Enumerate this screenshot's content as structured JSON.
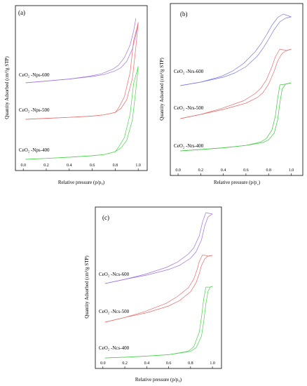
{
  "chart_data": [
    {
      "type": "line",
      "panel_label": "(a)",
      "xlabel": "Relative pressure (p/p₀)",
      "ylabel": "Quantity Adsorbed (cm³/g STP)",
      "xlim": [
        -0.05,
        1.06
      ],
      "xticks": [
        "0.0",
        "0.2",
        "0.4",
        "0.6",
        "0.8",
        "1.0"
      ],
      "hysteresis_start": 0.8,
      "y_scale": "relative (offset curves, no y tick labels)",
      "series": [
        {
          "name": "CeO₂ -Nps-600",
          "color": "#9f73e6",
          "x": [
            0.02,
            0.2,
            0.4,
            0.6,
            0.7,
            0.8,
            0.85,
            0.9,
            0.95,
            0.98,
            1.0
          ],
          "y": [
            0.0,
            0.028,
            0.06,
            0.1,
            0.13,
            0.19,
            0.24,
            0.34,
            0.54,
            0.76,
            0.96
          ]
        },
        {
          "name": "CeO₂ -Nps-500",
          "color": "#ea6b6b",
          "x": [
            0.02,
            0.2,
            0.4,
            0.6,
            0.7,
            0.8,
            0.85,
            0.9,
            0.95,
            0.98,
            1.0
          ],
          "y": [
            0.0,
            0.01,
            0.02,
            0.033,
            0.045,
            0.07,
            0.11,
            0.2,
            0.42,
            0.74,
            0.98
          ]
        },
        {
          "name": "CeO₂ -Nps-400",
          "color": "#4cd44c",
          "x": [
            0.02,
            0.2,
            0.4,
            0.6,
            0.7,
            0.8,
            0.85,
            0.9,
            0.95,
            0.98,
            1.0
          ],
          "y": [
            0.0,
            0.01,
            0.022,
            0.038,
            0.05,
            0.08,
            0.12,
            0.2,
            0.42,
            0.74,
            0.98
          ]
        }
      ]
    },
    {
      "type": "line",
      "panel_label": "(b)",
      "xlabel": "Relative pressure (p/p˳)",
      "ylabel": "Quantity Adsorbed (cm³/g STP)",
      "xlim": [
        -0.05,
        1.09
      ],
      "xticks": [
        "0.0",
        "0.2",
        "0.4",
        "0.6",
        "0.8",
        "1.0"
      ],
      "y_scale": "relative (offset curves, no y tick labels)",
      "series": [
        {
          "name": "CeO₂ -Nrs-600",
          "color": "#7b7be8",
          "x": [
            0.02,
            0.2,
            0.4,
            0.5,
            0.6,
            0.7,
            0.75,
            0.8,
            0.85,
            0.9,
            0.95,
            1.0
          ],
          "y": [
            0.0,
            0.05,
            0.12,
            0.18,
            0.27,
            0.42,
            0.53,
            0.66,
            0.8,
            0.91,
            0.96,
            0.98
          ]
        },
        {
          "name": "CeO₂ -Nrs-500",
          "color": "#ea6b6b",
          "x": [
            0.02,
            0.2,
            0.4,
            0.6,
            0.7,
            0.75,
            0.8,
            0.85,
            0.88,
            0.92,
            0.96,
            1.0
          ],
          "y": [
            0.0,
            0.06,
            0.13,
            0.22,
            0.3,
            0.37,
            0.49,
            0.68,
            0.82,
            0.93,
            0.97,
            0.99
          ]
        },
        {
          "name": "CeO₂ -Nrs-400",
          "color": "#3cc83c",
          "x": [
            0.02,
            0.2,
            0.4,
            0.6,
            0.75,
            0.8,
            0.85,
            0.88,
            0.9,
            0.92,
            0.95,
            1.0
          ],
          "y": [
            0.0,
            0.02,
            0.045,
            0.08,
            0.12,
            0.16,
            0.26,
            0.45,
            0.7,
            0.9,
            0.97,
            0.99
          ]
        }
      ]
    },
    {
      "type": "line",
      "panel_label": "(c)",
      "xlabel": "Relative pressure (p/p₀)",
      "ylabel": "Quantity Adsorbed (cm³/g STP)",
      "xlim": [
        -0.05,
        1.07
      ],
      "xticks": [
        "0.0",
        "0.2",
        "0.4",
        "0.6",
        "0.8",
        "1.0"
      ],
      "y_scale": "relative (offset curves, no y tick labels)",
      "series": [
        {
          "name": "CeO₂ -Ncs-600",
          "color": "#9f73e6",
          "x": [
            0.02,
            0.2,
            0.4,
            0.6,
            0.7,
            0.8,
            0.85,
            0.9,
            0.93,
            0.96,
            1.0
          ],
          "y": [
            0.0,
            0.06,
            0.12,
            0.2,
            0.26,
            0.36,
            0.45,
            0.62,
            0.82,
            0.95,
            0.99
          ]
        },
        {
          "name": "CeO₂ -Ncs-500",
          "color": "#ea6b6b",
          "x": [
            0.02,
            0.2,
            0.4,
            0.6,
            0.7,
            0.8,
            0.85,
            0.88,
            0.9,
            0.93,
            0.96,
            1.0
          ],
          "y": [
            0.0,
            0.07,
            0.14,
            0.24,
            0.32,
            0.45,
            0.58,
            0.72,
            0.84,
            0.94,
            0.98,
            0.99
          ]
        },
        {
          "name": "CeO₂ -Ncs-400",
          "color": "#4cd44c",
          "x": [
            0.02,
            0.2,
            0.4,
            0.6,
            0.8,
            0.85,
            0.9,
            0.92,
            0.94,
            0.96,
            0.98,
            1.0
          ],
          "y": [
            0.0,
            0.01,
            0.025,
            0.045,
            0.09,
            0.14,
            0.3,
            0.5,
            0.75,
            0.92,
            0.98,
            0.99
          ]
        }
      ]
    }
  ]
}
